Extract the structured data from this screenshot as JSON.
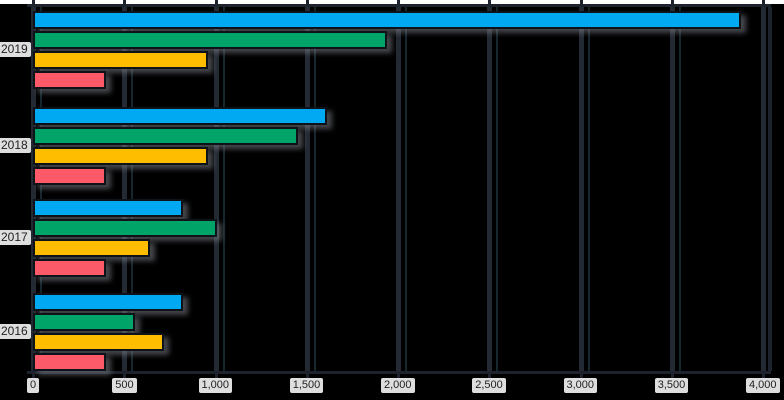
{
  "chart_data": {
    "type": "bar",
    "orientation": "horizontal",
    "title": "",
    "xlabel": "",
    "ylabel": "",
    "legend": "none",
    "grid": "vertical",
    "categories": [
      "2019",
      "2018",
      "2017",
      "2016"
    ],
    "series": [
      {
        "name": "blue",
        "color": "#00a9f2",
        "values": [
          3880,
          1610,
          820,
          820
        ]
      },
      {
        "name": "green",
        "color": "#00a368",
        "values": [
          1940,
          1450,
          1010,
          560
        ]
      },
      {
        "name": "yellow",
        "color": "#ffbd00",
        "values": [
          960,
          960,
          640,
          720
        ]
      },
      {
        "name": "red",
        "color": "#fc5a68",
        "values": [
          400,
          400,
          400,
          400
        ]
      }
    ],
    "xlim": [
      0,
      4000
    ],
    "x_tick_values": [
      0,
      500,
      1000,
      1500,
      2000,
      2500,
      3000,
      3500,
      4000
    ],
    "x_ticks": [
      "0",
      "500",
      "1,000",
      "1,500",
      "2,000",
      "2,500",
      "3,000",
      "3,500",
      "4,000"
    ]
  },
  "style": {
    "page_background": "#ffffff",
    "plot_background": "#000000",
    "grid_color": "#242a33",
    "axis_color": "#1d222c",
    "bar_outline": "#0e1219",
    "bar_shadow": "#7d828a",
    "label_chip_background": "#dedede",
    "label_text_color": "#1f1f1f"
  }
}
